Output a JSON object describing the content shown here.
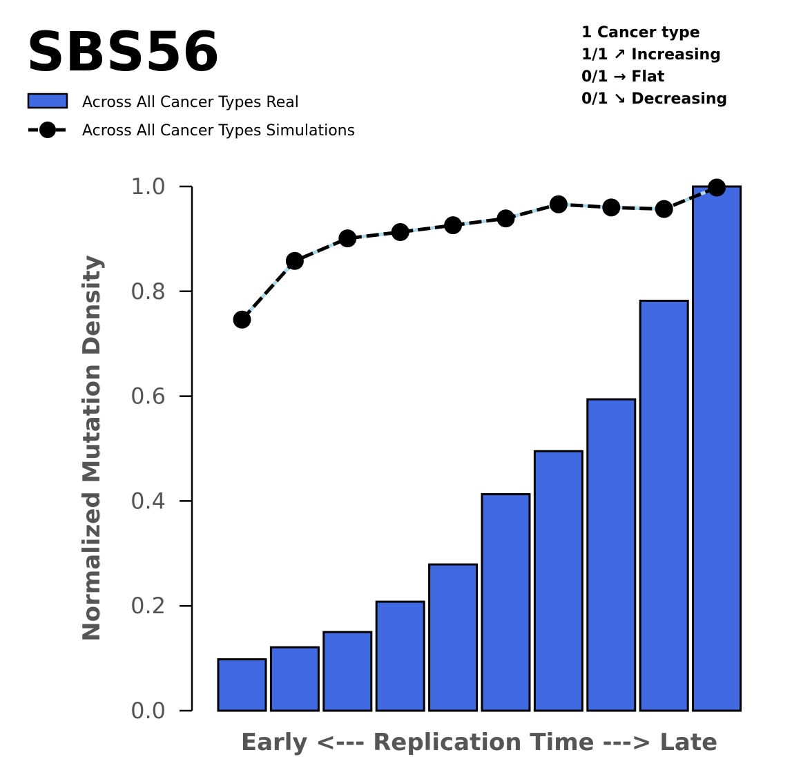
{
  "chart_data": {
    "type": "bar",
    "title": "SBS56",
    "xlabel": "Early <--- Replication Time ---> Late",
    "ylabel": "Normalized Mutation Density",
    "ylim": [
      0,
      1.0
    ],
    "yticks": [
      "0.0",
      "0.2",
      "0.4",
      "0.6",
      "0.8",
      "1.0"
    ],
    "legend_placement": "top-left",
    "summary": [
      "1 Cancer type",
      "1/1 ↗ Increasing",
      "0/1 → Flat",
      "0/1 ↘ Decreasing"
    ],
    "series": [
      {
        "name": "Across All Cancer Types Real",
        "type": "bar",
        "color": "#4169E1",
        "values": [
          0.098,
          0.121,
          0.15,
          0.208,
          0.279,
          0.413,
          0.495,
          0.594,
          0.782,
          1.0
        ]
      },
      {
        "name": "Across All Cancer Types Simulations",
        "type": "line",
        "color": "#000000",
        "values": [
          0.746,
          0.858,
          0.901,
          0.913,
          0.926,
          0.939,
          0.966,
          0.96,
          0.957,
          0.998
        ]
      }
    ]
  }
}
